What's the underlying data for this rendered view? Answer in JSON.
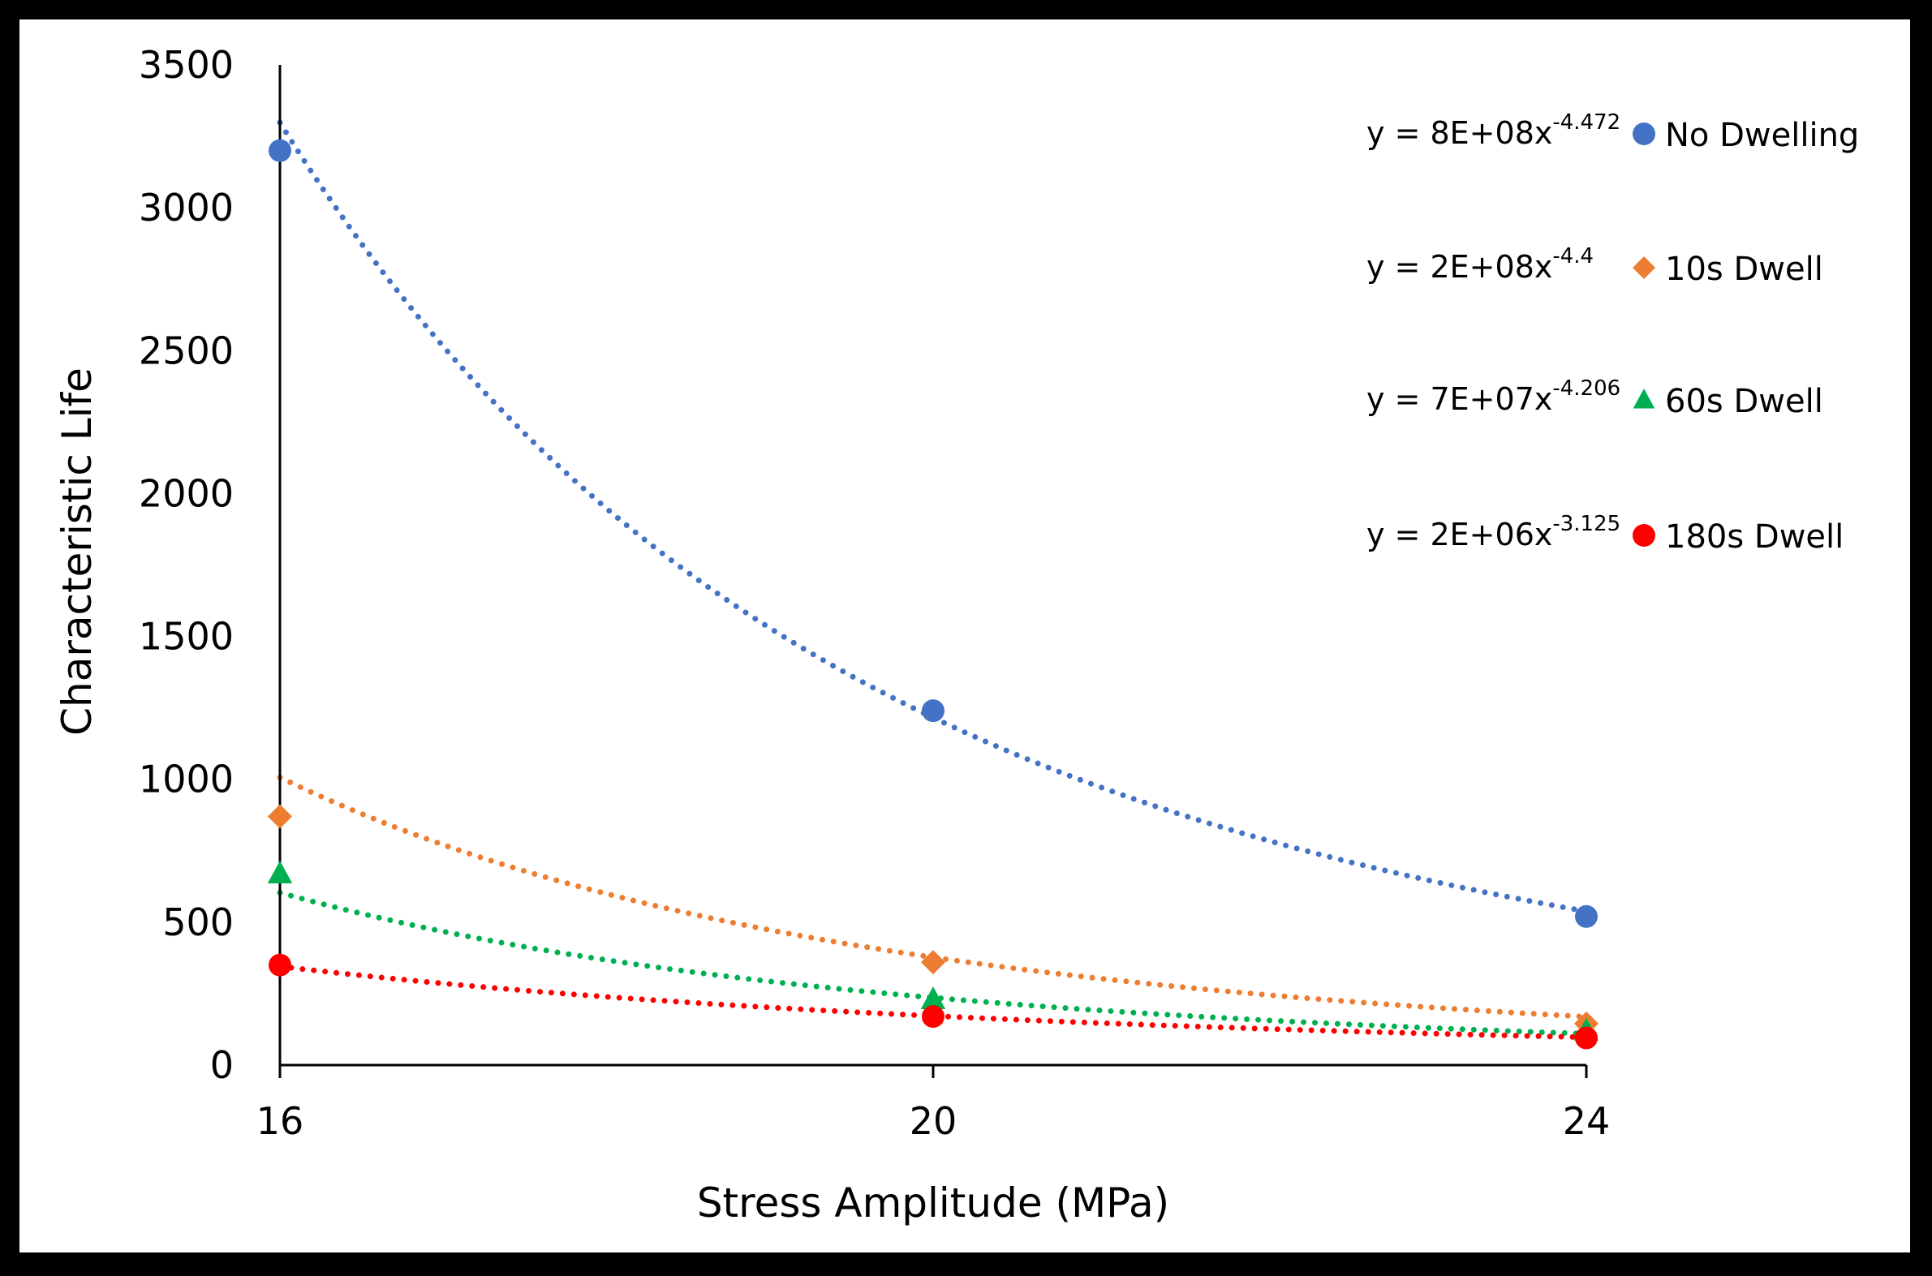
{
  "chart_data": {
    "type": "scatter",
    "title": "",
    "xlabel": "Stress Amplitude (MPa)",
    "ylabel": "Characteristic Life",
    "x": [
      16,
      20,
      24
    ],
    "xlim": [
      16,
      24
    ],
    "ylim": [
      0,
      3500
    ],
    "xticks": [
      "16",
      "20",
      "24"
    ],
    "yticks": [
      "0",
      "500",
      "1000",
      "1500",
      "2000",
      "2500",
      "3000",
      "3500"
    ],
    "grid": false,
    "legend_position": "top-right",
    "series": [
      {
        "name": "No Dwelling",
        "marker": "circle",
        "color": "#4472C4",
        "values": [
          3200,
          1240,
          520
        ],
        "trendline": {
          "type": "power",
          "coefficient": 800000000,
          "exponent": -4.472,
          "equation_prefix": "y = 8E+08x",
          "equation_exponent": "-4.472"
        }
      },
      {
        "name": "10s Dwell",
        "marker": "diamond",
        "color": "#ED7D31",
        "values": [
          870,
          360,
          145
        ],
        "trendline": {
          "type": "power",
          "coefficient": 200000000,
          "exponent": -4.4,
          "equation_prefix": "y = 2E+08x",
          "equation_exponent": "-4.4"
        }
      },
      {
        "name": "60s Dwell",
        "marker": "triangle",
        "color": "#00B050",
        "values": [
          670,
          230,
          120
        ],
        "trendline": {
          "type": "power",
          "coefficient": 70000000,
          "exponent": -4.206,
          "equation_prefix": "y = 7E+07x",
          "equation_exponent": "-4.206"
        }
      },
      {
        "name": "180s Dwell",
        "marker": "circle",
        "color": "#FF0000",
        "values": [
          350,
          170,
          95
        ],
        "trendline": {
          "type": "power",
          "coefficient": 2000000,
          "exponent": -3.125,
          "equation_prefix": "y = 2E+06x",
          "equation_exponent": "-3.125"
        }
      }
    ]
  }
}
